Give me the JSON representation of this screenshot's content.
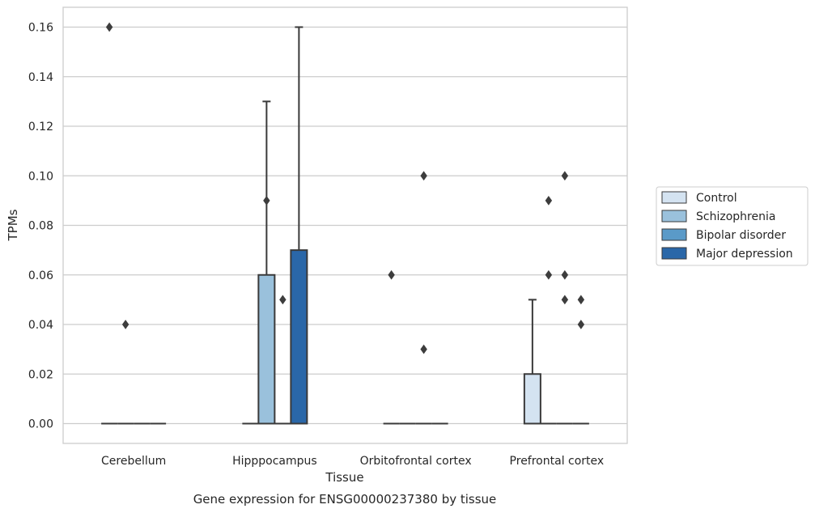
{
  "chart_data": {
    "type": "box",
    "title": "",
    "caption": "Gene expression for ENSG00000237380 by tissue",
    "xlabel": "Tissue",
    "ylabel": "TPMs",
    "ylim": [
      -0.008,
      0.168
    ],
    "yticks": [
      0.0,
      0.02,
      0.04,
      0.06,
      0.08,
      0.1,
      0.12,
      0.14,
      0.16
    ],
    "ytick_labels": [
      "0.00",
      "0.02",
      "0.04",
      "0.06",
      "0.08",
      "0.10",
      "0.12",
      "0.14",
      "0.16"
    ],
    "grid": "horizontal",
    "legend_placement": "right",
    "categories": [
      "Cerebellum",
      "Hipppocampus",
      "Orbitofrontal cortex",
      "Prefrontal cortex"
    ],
    "series": [
      {
        "name": "Control",
        "color": "#d4e3f1",
        "boxes": [
          {
            "q1": 0,
            "median": 0,
            "q3": 0,
            "whisker_low": 0,
            "whisker_high": 0,
            "outliers": [
              0.16
            ]
          },
          {
            "q1": 0,
            "median": 0,
            "q3": 0,
            "whisker_low": 0,
            "whisker_high": 0,
            "outliers": []
          },
          {
            "q1": 0,
            "median": 0,
            "q3": 0,
            "whisker_low": 0,
            "whisker_high": 0,
            "outliers": [
              0.06
            ]
          },
          {
            "q1": 0,
            "median": 0,
            "q3": 0.02,
            "whisker_low": 0,
            "whisker_high": 0.05,
            "outliers": []
          }
        ]
      },
      {
        "name": "Schizophrenia",
        "color": "#9ac1dc",
        "boxes": [
          {
            "q1": 0,
            "median": 0,
            "q3": 0,
            "whisker_low": 0,
            "whisker_high": 0,
            "outliers": [
              0.04
            ]
          },
          {
            "q1": 0,
            "median": 0,
            "q3": 0.06,
            "whisker_low": 0,
            "whisker_high": 0.13,
            "outliers": [
              0.09
            ]
          },
          {
            "q1": 0,
            "median": 0,
            "q3": 0,
            "whisker_low": 0,
            "whisker_high": 0,
            "outliers": []
          },
          {
            "q1": 0,
            "median": 0,
            "q3": 0,
            "whisker_low": 0,
            "whisker_high": 0,
            "outliers": [
              0.09,
              0.06
            ]
          }
        ]
      },
      {
        "name": "Bipolar disorder",
        "color": "#5a9ac8",
        "boxes": [
          {
            "q1": 0,
            "median": 0,
            "q3": 0,
            "whisker_low": 0,
            "whisker_high": 0,
            "outliers": []
          },
          {
            "q1": 0,
            "median": 0,
            "q3": 0,
            "whisker_low": 0,
            "whisker_high": 0,
            "outliers": [
              0.05
            ]
          },
          {
            "q1": 0,
            "median": 0,
            "q3": 0,
            "whisker_low": 0,
            "whisker_high": 0,
            "outliers": [
              0.1,
              0.03
            ]
          },
          {
            "q1": 0,
            "median": 0,
            "q3": 0,
            "whisker_low": 0,
            "whisker_high": 0,
            "outliers": [
              0.1,
              0.06,
              0.05
            ]
          }
        ]
      },
      {
        "name": "Major depression",
        "color": "#2a67a8",
        "boxes": [
          {
            "q1": 0,
            "median": 0,
            "q3": 0,
            "whisker_low": 0,
            "whisker_high": 0,
            "outliers": []
          },
          {
            "q1": 0,
            "median": 0,
            "q3": 0.07,
            "whisker_low": 0,
            "whisker_high": 0.16,
            "outliers": []
          },
          {
            "q1": 0,
            "median": 0,
            "q3": 0,
            "whisker_low": 0,
            "whisker_high": 0,
            "outliers": []
          },
          {
            "q1": 0,
            "median": 0,
            "q3": 0,
            "whisker_low": 0,
            "whisker_high": 0,
            "outliers": [
              0.05,
              0.04
            ]
          }
        ]
      }
    ]
  }
}
